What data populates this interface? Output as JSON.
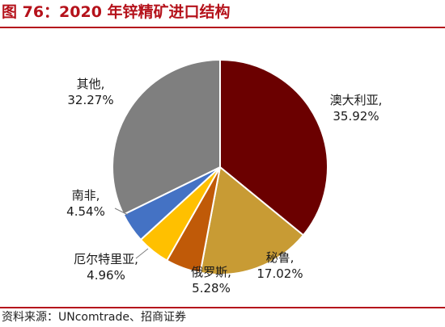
{
  "figure": {
    "title": "图 76：2020 年锌精矿进口结构",
    "source": "资料来源：UNcomtrade、招商证券",
    "accent_color": "#b5121b"
  },
  "chart_data": {
    "type": "pie",
    "title": "",
    "slices": [
      {
        "name": "澳大利亚",
        "value": 35.92,
        "value_label": "35.92%",
        "color": "#6b0000"
      },
      {
        "name": "秘鲁",
        "value": 17.02,
        "value_label": "17.02%",
        "color": "#c89b34"
      },
      {
        "name": "俄罗斯",
        "value": 5.28,
        "value_label": "5.28%",
        "color": "#c05a08"
      },
      {
        "name": "厄尔特里亚",
        "value": 4.96,
        "value_label": "4.96%",
        "color": "#ffc000"
      },
      {
        "name": "南非",
        "value": 4.54,
        "value_label": "4.54%",
        "color": "#4472c4"
      },
      {
        "name": "其他",
        "value": 32.27,
        "value_label": "32.27%",
        "color": "#7f7f7f"
      }
    ],
    "legend": "none",
    "start_angle": "12 o'clock",
    "direction": "clockwise"
  }
}
